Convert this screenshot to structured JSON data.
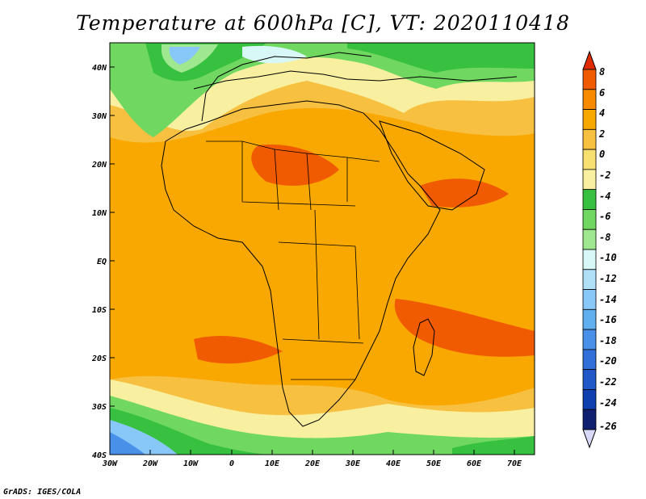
{
  "title": "Temperature at 600hPa [C], VT: 2020110418",
  "credit": "GrADS: IGES/COLA",
  "map": {
    "lat_labels": [
      "40N",
      "30N",
      "20N",
      "10N",
      "EQ",
      "10S",
      "20S",
      "30S",
      "40S"
    ],
    "lon_labels": [
      "30W",
      "20W",
      "10W",
      "0",
      "10E",
      "20E",
      "30E",
      "40E",
      "50E",
      "60E",
      "70E"
    ]
  },
  "colorbar": {
    "labels": [
      "8",
      "6",
      "4",
      "2",
      "0",
      "-2",
      "-4",
      "-6",
      "-8",
      "-10",
      "-12",
      "-14",
      "-16",
      "-18",
      "-20",
      "-22",
      "-24",
      "-26"
    ],
    "colors": [
      "#e02a00",
      "#f05a00",
      "#f88a00",
      "#f8a800",
      "#f8c040",
      "#f8e070",
      "#f8f0a0",
      "#38c040",
      "#70d860",
      "#a0e890",
      "#d8f8f8",
      "#b0e0f8",
      "#88c8f8",
      "#60b0f0",
      "#4890e8",
      "#3070d8",
      "#2058c8",
      "#1040b0",
      "#102070",
      "#d8d8f8"
    ]
  }
}
